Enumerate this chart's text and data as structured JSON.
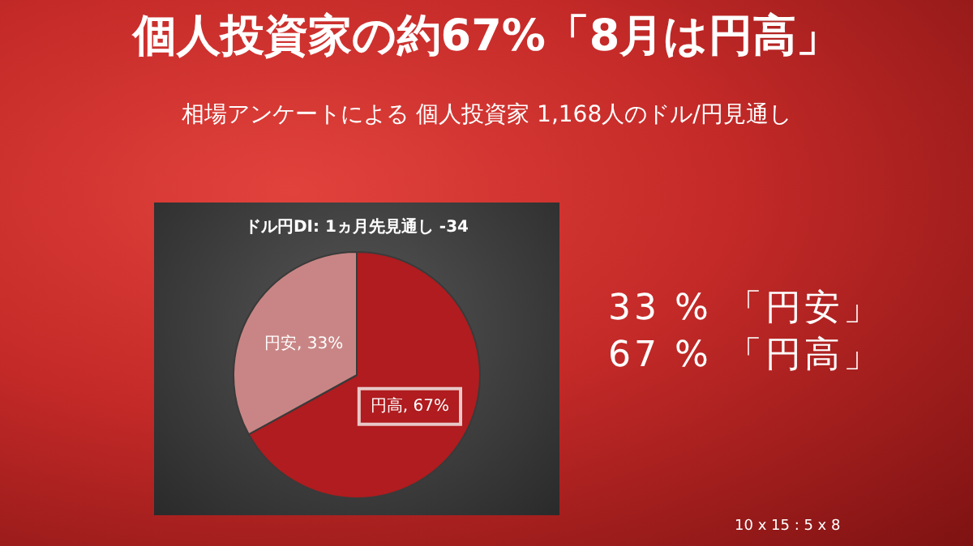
{
  "chart_data": {
    "type": "pie",
    "title": "個人投資家の約67%「8月は円高」",
    "subtitle": "相場アンケートによる 個人投資家 1,168人のドル/円見通し",
    "categories": [
      "円高",
      "円安"
    ],
    "values": [
      67,
      33
    ],
    "colors": [
      "#b01c1f",
      "#c98585"
    ],
    "value_labels": [
      "67%",
      "33%"
    ],
    "legend": false,
    "annotations": [
      "ドル円DI: 1ヵ月先見通し -34",
      "33 % 「円安」",
      "67 % 「円高」",
      "10 x 15 : 5 x 8"
    ]
  }
}
